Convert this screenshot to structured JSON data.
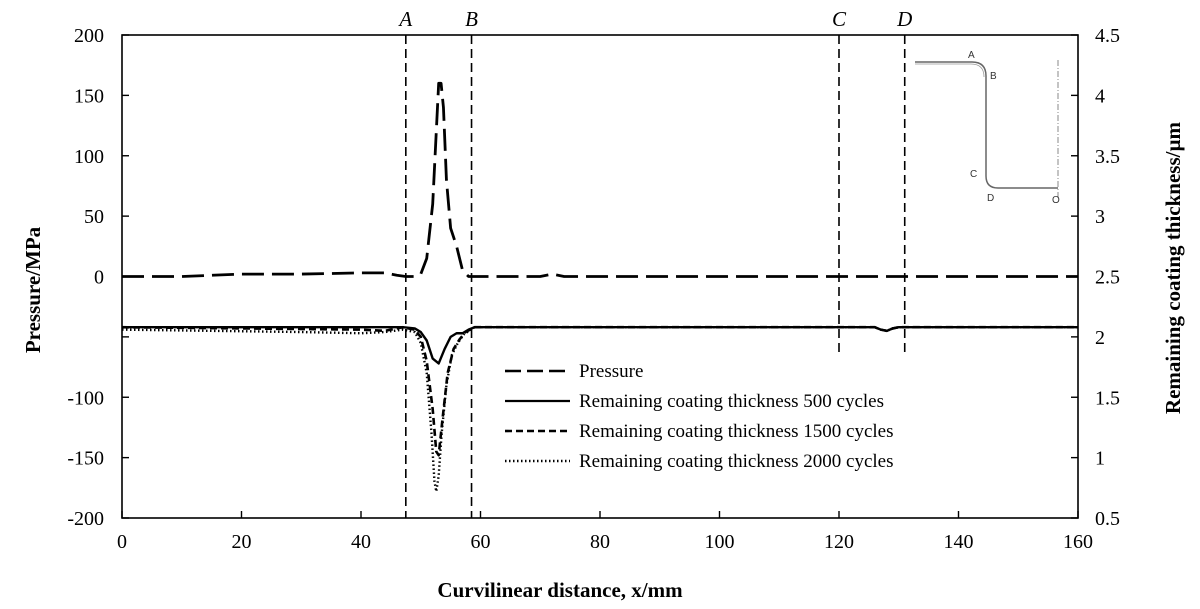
{
  "chart_data": {
    "type": "line",
    "title": "",
    "xlabel": "Curvilinear distance, x/mm",
    "ylabel_left": "Pressure/MPa",
    "ylabel_right": "Remaining coating thickness/µm",
    "xlim": [
      0,
      160
    ],
    "ylim_left": [
      -200,
      200
    ],
    "ylim_right": [
      0.5,
      4.5
    ],
    "x_ticks": [
      "0",
      "20",
      "40",
      "60",
      "80",
      "100",
      "120",
      "140",
      "160"
    ],
    "y_left_ticks": [
      "200",
      "150",
      "100",
      "50",
      "0",
      "-100",
      "-150",
      "-200"
    ],
    "y_right_ticks": [
      "4.5",
      "4",
      "3.5",
      "3",
      "2.5",
      "2",
      "1.5",
      "1",
      "0.5"
    ],
    "grid": false,
    "legend_position": "center-bottom",
    "markers": [
      {
        "label": "A",
        "x": 47.5
      },
      {
        "label": "B",
        "x": 58.5
      },
      {
        "label": "C",
        "x": 120
      },
      {
        "label": "D",
        "x": 131
      }
    ],
    "series": [
      {
        "name": "Pressure",
        "axis": "left",
        "style": "longdash",
        "points": [
          [
            0,
            0
          ],
          [
            10,
            0
          ],
          [
            20,
            2
          ],
          [
            30,
            2
          ],
          [
            40,
            3
          ],
          [
            44,
            3
          ],
          [
            46,
            1
          ],
          [
            47.5,
            0
          ],
          [
            49,
            0
          ],
          [
            50,
            2
          ],
          [
            51,
            15
          ],
          [
            52,
            60
          ],
          [
            52.7,
            130
          ],
          [
            53,
            160
          ],
          [
            53.4,
            160
          ],
          [
            53.8,
            140
          ],
          [
            54.3,
            80
          ],
          [
            55,
            40
          ],
          [
            56,
            25
          ],
          [
            57,
            5
          ],
          [
            58,
            0
          ],
          [
            60,
            0
          ],
          [
            70,
            0
          ],
          [
            72,
            2
          ],
          [
            74,
            0
          ],
          [
            100,
            0
          ],
          [
            160,
            0
          ]
        ]
      },
      {
        "name": "Remaining coating thickness 500 cycles",
        "axis": "right",
        "style": "solid",
        "points": [
          [
            0,
            2.08
          ],
          [
            20,
            2.08
          ],
          [
            40,
            2.08
          ],
          [
            47,
            2.08
          ],
          [
            49,
            2.07
          ],
          [
            50,
            2.04
          ],
          [
            51,
            1.97
          ],
          [
            52,
            1.82
          ],
          [
            53,
            1.78
          ],
          [
            54,
            1.9
          ],
          [
            55,
            2.0
          ],
          [
            56,
            2.03
          ],
          [
            57,
            2.03
          ],
          [
            58,
            2.06
          ],
          [
            59,
            2.08
          ],
          [
            80,
            2.08
          ],
          [
            126,
            2.08
          ],
          [
            127,
            2.06
          ],
          [
            128,
            2.05
          ],
          [
            129,
            2.07
          ],
          [
            130,
            2.08
          ],
          [
            160,
            2.08
          ]
        ]
      },
      {
        "name": "Remaining coating thickness 1500 cycles",
        "axis": "right",
        "style": "dash",
        "points": [
          [
            0,
            2.08
          ],
          [
            20,
            2.07
          ],
          [
            40,
            2.06
          ],
          [
            44,
            2.05
          ],
          [
            47,
            2.08
          ],
          [
            49,
            2.06
          ],
          [
            50,
            2.0
          ],
          [
            51,
            1.8
          ],
          [
            52,
            1.4
          ],
          [
            52.6,
            1.05
          ],
          [
            53,
            1.02
          ],
          [
            53.6,
            1.3
          ],
          [
            54.5,
            1.7
          ],
          [
            55.5,
            1.9
          ],
          [
            56.5,
            1.98
          ],
          [
            57.5,
            2.04
          ],
          [
            59,
            2.08
          ],
          [
            80,
            2.08
          ],
          [
            126,
            2.08
          ],
          [
            127,
            2.06
          ],
          [
            128,
            2.05
          ],
          [
            129,
            2.07
          ],
          [
            130,
            2.08
          ],
          [
            160,
            2.08
          ]
        ]
      },
      {
        "name": "Remaining coating thickness 2000 cycles",
        "axis": "right",
        "style": "dotted",
        "points": [
          [
            0,
            2.06
          ],
          [
            15,
            2.05
          ],
          [
            30,
            2.04
          ],
          [
            40,
            2.03
          ],
          [
            44,
            2.04
          ],
          [
            47,
            2.06
          ],
          [
            49,
            2.04
          ],
          [
            50,
            1.95
          ],
          [
            51,
            1.7
          ],
          [
            51.8,
            1.2
          ],
          [
            52.3,
            0.8
          ],
          [
            52.6,
            0.72
          ],
          [
            53,
            0.85
          ],
          [
            53.5,
            1.2
          ],
          [
            54.3,
            1.6
          ],
          [
            55.2,
            1.85
          ],
          [
            56.2,
            1.95
          ],
          [
            57.2,
            2.02
          ],
          [
            59,
            2.08
          ],
          [
            80,
            2.08
          ],
          [
            126,
            2.08
          ],
          [
            127,
            2.06
          ],
          [
            128,
            2.05
          ],
          [
            129,
            2.07
          ],
          [
            130,
            2.08
          ],
          [
            160,
            2.08
          ]
        ]
      }
    ],
    "inset_labels": [
      "A",
      "B",
      "C",
      "D",
      "O"
    ]
  }
}
